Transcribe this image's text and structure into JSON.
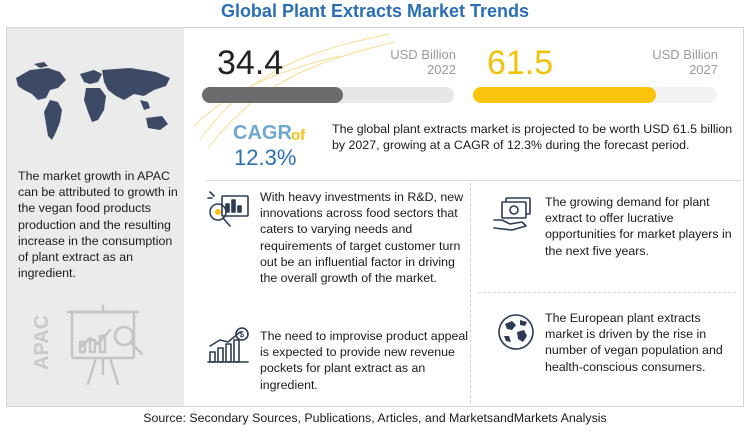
{
  "title": "Global Plant Extracts Market Trends",
  "left_panel": {
    "description": "The market growth in APAC can be attributed to growth in the vegan food products production and the resulting increase in the consumption of plant extract as an ingredient.",
    "region_label": "APAC"
  },
  "market_size": {
    "start": {
      "value": "34.4",
      "unit": "USD Billion",
      "year": "2022"
    },
    "end": {
      "value": "61.5",
      "unit": "USD Billion",
      "year": "2027"
    }
  },
  "cagr": {
    "label": "CAGR",
    "of": "of",
    "value": "12.3%"
  },
  "projection_text": "The global plant extracts market is projected to be worth USD 61.5 billion by 2027, growing at a CAGR of 12.3% during the forecast period.",
  "points": {
    "investments": "With heavy investments in R&D, new innovations across food sectors that caters to varying needs and requirements of target customer turn out be an influential factor in driving the overall growth of the market.",
    "appeal": "The need to improvise product appeal is expected to provide new revenue pockets for plant extract as an ingredient.",
    "demand": "The growing demand for plant extract to offer lucrative opportunities for market players in the next five years.",
    "europe": "The European plant extracts market is driven by the rise in number of vegan population and health-conscious consumers."
  },
  "source": "Source: Secondary Sources, Publications, Articles, and MarketsandMarkets Analysis",
  "colors": {
    "title": "#2a6fb5",
    "bar_2022": "#6b6b6b",
    "bar_2027": "#fbc40c",
    "cagr_label": "#6fa8cf",
    "cagr_value": "#2a6fb5"
  },
  "icons": [
    "world-map-icon",
    "presentation-easel-icon",
    "rnd-analysis-icon",
    "growth-chart-icon",
    "money-hand-icon",
    "globe-icon"
  ],
  "chart_data": {
    "type": "bar",
    "categories": [
      "2022",
      "2027"
    ],
    "values": [
      34.4,
      61.5
    ],
    "fill_fractions": [
      0.56,
      0.75
    ],
    "unit": "USD Billion",
    "cagr": "12.3%",
    "title": "",
    "xlabel": "",
    "ylabel": ""
  }
}
